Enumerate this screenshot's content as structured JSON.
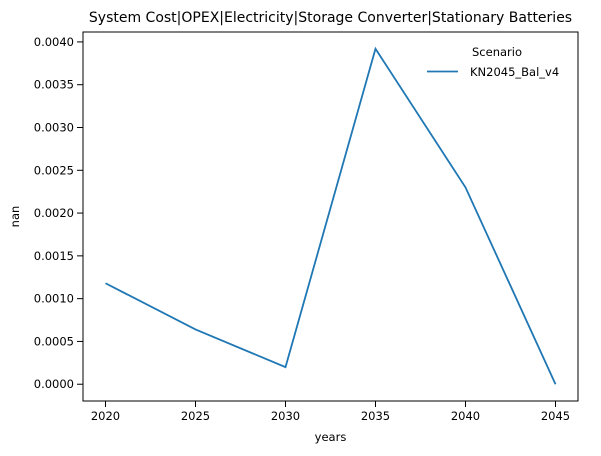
{
  "window": {
    "title": "System Cost|OPEX|Electricity|Storage Converter|Stationary Batteries"
  },
  "chart_data": {
    "type": "line",
    "title": "System Cost|OPEX|Electricity|Storage Converter|Stationary Batteries",
    "xlabel": "years",
    "ylabel": "nan",
    "x": [
      2020,
      2025,
      2030,
      2035,
      2040,
      2045
    ],
    "series": [
      {
        "name": "KN2045_Bal_v4",
        "color": "#1f77b4",
        "values": [
          0.00118,
          0.00064,
          0.0002,
          0.00392,
          0.0023,
          0.0
        ]
      }
    ],
    "legend": {
      "title": "Scenario",
      "position": "upper right",
      "frame": false
    },
    "xticks": [
      2020,
      2025,
      2030,
      2035,
      2040,
      2045
    ],
    "xtick_labels": [
      "2020",
      "2025",
      "2030",
      "2035",
      "2040",
      "2045"
    ],
    "yticks": [
      0.0,
      0.0005,
      0.001,
      0.0015,
      0.002,
      0.0025,
      0.003,
      0.0035,
      0.004
    ],
    "ytick_labels": [
      "0.0000",
      "0.0005",
      "0.0010",
      "0.0015",
      "0.0020",
      "0.0025",
      "0.0030",
      "0.0035",
      "0.0040"
    ],
    "xlim": [
      2018.75,
      2046.25
    ],
    "ylim": [
      -0.000196,
      0.004116
    ],
    "grid": false,
    "axis_color": "#000000",
    "background_color": "#ffffff"
  }
}
